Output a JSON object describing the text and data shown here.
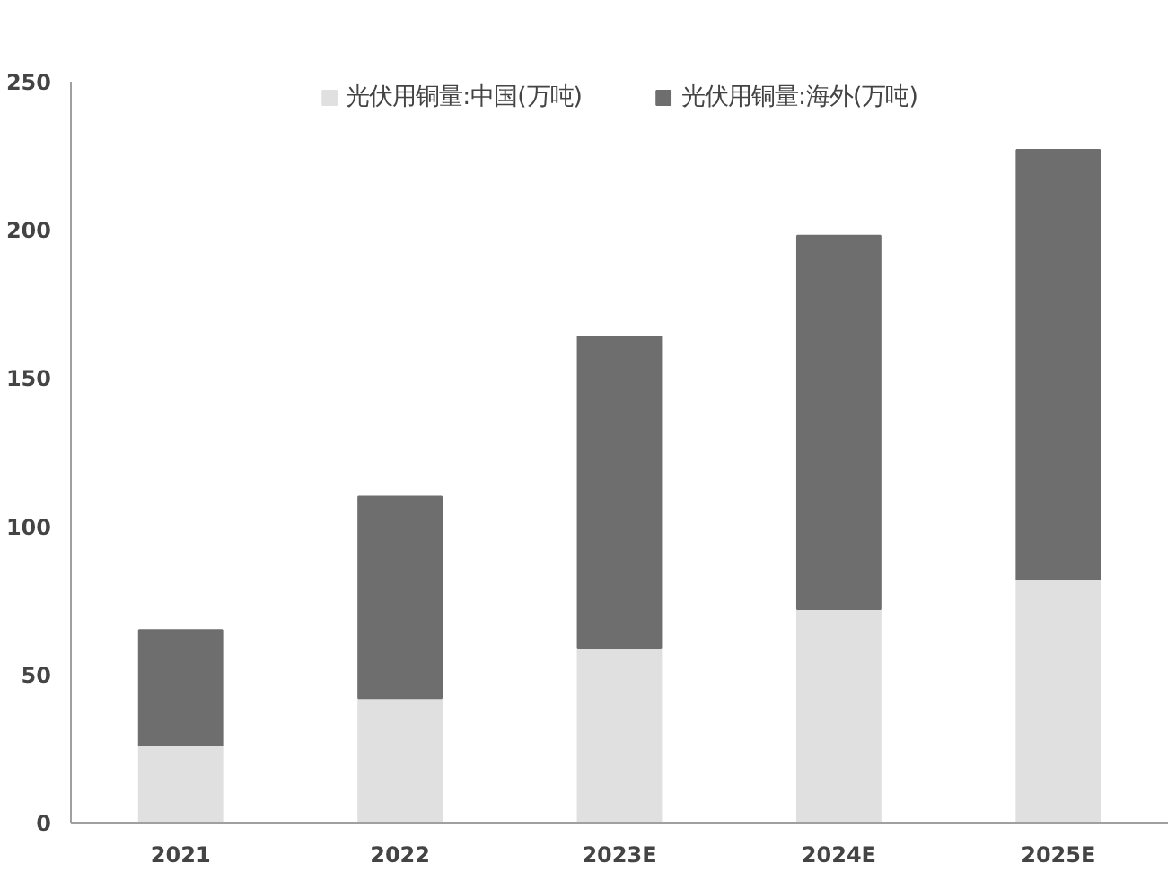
{
  "chart_data": {
    "type": "bar",
    "stacked": true,
    "categories": [
      "2021",
      "2022",
      "2023E",
      "2024E",
      "2025E"
    ],
    "series": [
      {
        "name": "光伏用铜量:中国(万吨)",
        "color": "#e0e0e0",
        "values": [
          26,
          42,
          59,
          72,
          82
        ]
      },
      {
        "name": "光伏用铜量:海外(万吨)",
        "color": "#6e6e6e",
        "values": [
          39,
          68,
          105,
          126,
          145
        ]
      }
    ],
    "ylim": [
      0,
      250
    ],
    "yticks": [
      0,
      50,
      100,
      150,
      200,
      250
    ],
    "grid": false,
    "legend": "top"
  }
}
